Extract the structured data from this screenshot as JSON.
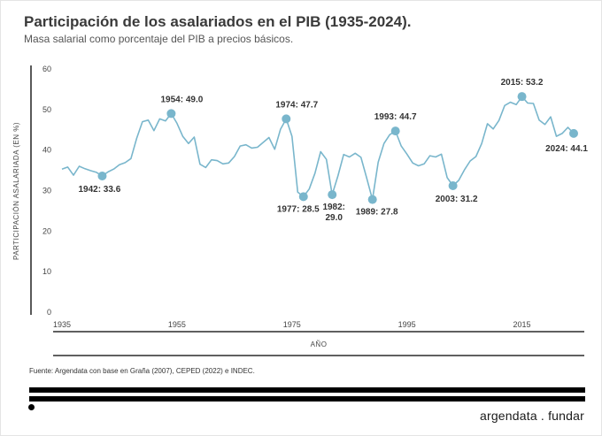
{
  "header": {
    "title": "Participación de los asalariados en el PIB (1935-2024).",
    "subtitle": "Masa salarial como porcentaje del PIB a precios básicos."
  },
  "footer": {
    "source": "Fuente: Argendata con base en Graña (2007), CEPED (2022) e INDEC.",
    "brand": "argendata . fundar"
  },
  "colors": {
    "line": "#79b6cc",
    "marker": "#79b6cc",
    "axis": "#000000"
  },
  "chart_data": {
    "type": "line",
    "title": "Participación de los asalariados en el PIB (1935-2024).",
    "subtitle": "Masa salarial como porcentaje del PIB a precios básicos.",
    "xlabel": "AÑO",
    "ylabel": "PARTICIPACIÓN ASALARIADA (EN %)",
    "xlim": [
      1935,
      2024
    ],
    "ylim": [
      0,
      60
    ],
    "x_ticks": [
      1935,
      1955,
      1975,
      1995,
      2015
    ],
    "y_ticks": [
      0,
      10,
      20,
      30,
      40,
      50,
      60
    ],
    "grid": false,
    "series": [
      {
        "x": [
          1935,
          1936,
          1937,
          1938,
          1939,
          1940,
          1941,
          1942,
          1943,
          1944,
          1945,
          1946,
          1947,
          1948,
          1949,
          1950,
          1951,
          1952,
          1953,
          1954,
          1955,
          1956,
          1957,
          1958,
          1959,
          1960,
          1961,
          1962,
          1963,
          1964,
          1965,
          1966,
          1967,
          1968,
          1969,
          1970,
          1971,
          1972,
          1973,
          1974,
          1975,
          1976,
          1977,
          1978,
          1979,
          1980,
          1981,
          1982,
          1983,
          1984,
          1985,
          1986,
          1987,
          1988,
          1989,
          1990,
          1991,
          1992,
          1993,
          1994,
          1995,
          1996,
          1997,
          1998,
          1999,
          2000,
          2001,
          2002,
          2003,
          2004,
          2005,
          2006,
          2007,
          2008,
          2009,
          2010,
          2011,
          2012,
          2013,
          2014,
          2015,
          2016,
          2017,
          2018,
          2019,
          2020,
          2021,
          2022,
          2023,
          2024
        ],
        "y": [
          35.3,
          35.8,
          33.8,
          36.0,
          35.4,
          34.9,
          34.5,
          33.6,
          34.6,
          35.3,
          36.4,
          36.9,
          37.9,
          42.9,
          47.0,
          47.4,
          44.8,
          47.7,
          47.2,
          49.0,
          46.6,
          43.4,
          41.6,
          43.2,
          36.5,
          35.7,
          37.6,
          37.4,
          36.6,
          36.8,
          38.4,
          41.0,
          41.3,
          40.5,
          40.7,
          41.9,
          43.1,
          40.2,
          45.1,
          47.7,
          43.4,
          29.6,
          28.5,
          30.4,
          34.3,
          39.6,
          37.7,
          29.0,
          33.6,
          38.9,
          38.3,
          39.2,
          38.2,
          33.1,
          27.8,
          37.0,
          41.6,
          43.8,
          44.7,
          41.0,
          39.0,
          36.8,
          36.1,
          36.6,
          38.6,
          38.3,
          39.0,
          33.2,
          31.2,
          32.5,
          35.1,
          37.3,
          38.4,
          41.6,
          46.5,
          45.2,
          47.3,
          51.0,
          51.8,
          51.2,
          53.2,
          51.6,
          51.5,
          47.4,
          46.3,
          48.2,
          43.4,
          44.1,
          45.6,
          44.1
        ]
      }
    ],
    "highlights": [
      {
        "year": 1942,
        "value": 33.6,
        "label": "1942: 33.6"
      },
      {
        "year": 1954,
        "value": 49.0,
        "label": "1954: 49.0"
      },
      {
        "year": 1974,
        "value": 47.7,
        "label": "1974: 47.7"
      },
      {
        "year": 1977,
        "value": 28.5,
        "label": "1977: 28.5"
      },
      {
        "year": 1982,
        "value": 29.0,
        "label": "1982:\n29.0"
      },
      {
        "year": 1989,
        "value": 27.8,
        "label": "1989: 27.8"
      },
      {
        "year": 1993,
        "value": 44.7,
        "label": "1993: 44.7"
      },
      {
        "year": 2003,
        "value": 31.2,
        "label": "2003: 31.2"
      },
      {
        "year": 2015,
        "value": 53.2,
        "label": "2015: 53.2"
      },
      {
        "year": 2024,
        "value": 44.1,
        "label": "2024: 44.1"
      }
    ]
  }
}
